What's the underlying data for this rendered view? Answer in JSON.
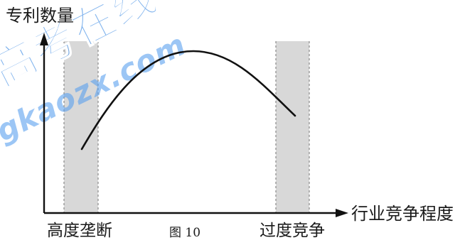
{
  "figure": {
    "y_axis_label": "专利数量",
    "x_axis_label": "行业竞争程度",
    "left_zone_label": "高度垄断",
    "right_zone_label": "过度竞争",
    "caption": "图 10"
  },
  "watermark": {
    "title": "高考在线",
    "site": "gkaozx.com",
    "color": "#4f95e6"
  },
  "colors": {
    "zone_fill": "#d8d8d8",
    "ink": "#111111"
  }
}
